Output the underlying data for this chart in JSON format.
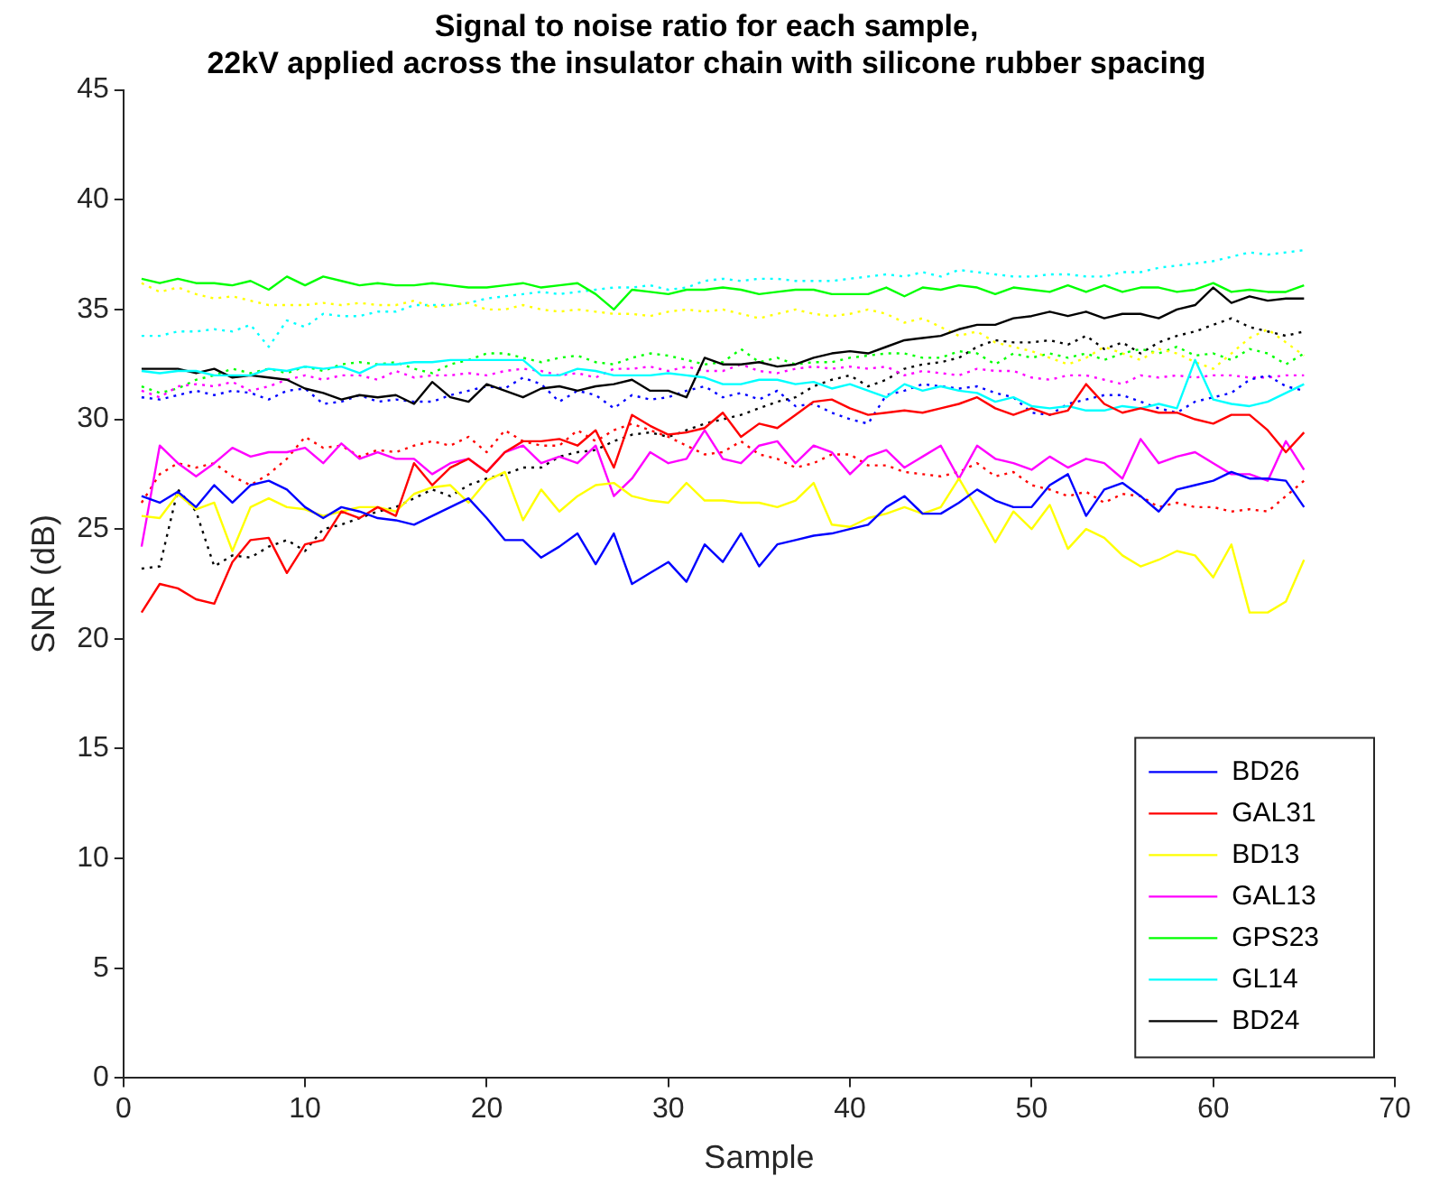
{
  "chart_data": {
    "type": "line",
    "title": "Signal to noise ratio for each sample,\n22kV applied across the insulator chain with silicone rubber spacing",
    "xlabel": "Sample",
    "ylabel": "SNR (dB)",
    "x": [
      1,
      2,
      3,
      4,
      5,
      6,
      7,
      8,
      9,
      10,
      11,
      12,
      13,
      14,
      15,
      16,
      17,
      18,
      19,
      20,
      21,
      22,
      23,
      24,
      25,
      26,
      27,
      28,
      29,
      30,
      31,
      32,
      33,
      34,
      35,
      36,
      37,
      38,
      39,
      40,
      41,
      42,
      43,
      44,
      45,
      46,
      47,
      48,
      49,
      50,
      51,
      52,
      53,
      54,
      55,
      56,
      57,
      58,
      59,
      60,
      61,
      62,
      63,
      64,
      65
    ],
    "xlim": [
      0,
      70
    ],
    "xticks": [
      0,
      10,
      20,
      30,
      40,
      50,
      60,
      70
    ],
    "ylim": [
      0,
      45
    ],
    "yticks": [
      0,
      5,
      10,
      15,
      20,
      25,
      30,
      35,
      40,
      45
    ],
    "grid": false,
    "legend": "bottom right",
    "marker": "none",
    "series": [
      {
        "name": "BD26",
        "color": "#0000ff",
        "line_style": "solid",
        "values": [
          26.5,
          26.2,
          26.7,
          26.0,
          27.0,
          26.2,
          27.0,
          27.2,
          26.8,
          26.0,
          25.5,
          26.0,
          25.8,
          25.5,
          25.4,
          25.2,
          25.6,
          26.0,
          26.4,
          25.5,
          24.5,
          24.5,
          23.7,
          24.2,
          24.8,
          23.4,
          24.8,
          22.5,
          23.0,
          23.5,
          22.6,
          24.3,
          23.5,
          24.8,
          23.3,
          24.3,
          24.5,
          24.7,
          24.8,
          25.0,
          25.2,
          26.0,
          26.5,
          25.7,
          25.7,
          26.2,
          26.8,
          26.3,
          26.0,
          26.0,
          27.0,
          27.5,
          25.6,
          26.8,
          27.1,
          26.5,
          25.8,
          26.8,
          27.0,
          27.2,
          27.6,
          27.3,
          27.3,
          27.2,
          26.0
        ]
      },
      {
        "name": "GAL31",
        "color": "#ff0000",
        "line_style": "solid",
        "values": [
          21.2,
          22.5,
          22.3,
          21.8,
          21.6,
          23.5,
          24.5,
          24.6,
          23.0,
          24.3,
          24.5,
          25.8,
          25.5,
          26.0,
          25.6,
          28.0,
          27.0,
          27.8,
          28.2,
          27.6,
          28.5,
          29.0,
          29.0,
          29.1,
          28.8,
          29.5,
          27.8,
          30.2,
          29.7,
          29.3,
          29.4,
          29.6,
          30.3,
          29.2,
          29.8,
          29.6,
          30.2,
          30.8,
          30.9,
          30.5,
          30.2,
          30.3,
          30.4,
          30.3,
          30.5,
          30.7,
          31.0,
          30.5,
          30.2,
          30.5,
          30.2,
          30.4,
          31.6,
          30.7,
          30.3,
          30.5,
          30.3,
          30.3,
          30.0,
          29.8,
          30.2,
          30.2,
          29.5,
          28.5,
          29.4
        ]
      },
      {
        "name": "BD13",
        "color": "#ffff00",
        "line_style": "solid",
        "values": [
          25.6,
          25.5,
          26.6,
          25.9,
          26.2,
          24.0,
          26.0,
          26.4,
          26.0,
          25.9,
          25.6,
          25.8,
          26.0,
          26.0,
          25.8,
          26.6,
          26.9,
          27.0,
          26.2,
          27.2,
          27.6,
          25.4,
          26.8,
          25.8,
          26.5,
          27.0,
          27.1,
          26.5,
          26.3,
          26.2,
          27.1,
          26.3,
          26.3,
          26.2,
          26.2,
          26.0,
          26.3,
          27.1,
          25.2,
          25.1,
          25.5,
          25.7,
          26.0,
          25.7,
          26.0,
          27.3,
          25.9,
          24.4,
          25.8,
          25.0,
          26.1,
          24.1,
          25.0,
          24.6,
          23.8,
          23.3,
          23.6,
          24.0,
          23.8,
          22.8,
          24.3,
          21.2,
          21.2,
          21.7,
          23.6
        ]
      },
      {
        "name": "GAL13",
        "color": "#ff00ff",
        "line_style": "solid",
        "values": [
          24.2,
          28.8,
          28.0,
          27.4,
          28.0,
          28.7,
          28.3,
          28.5,
          28.5,
          28.7,
          28.0,
          28.9,
          28.2,
          28.5,
          28.2,
          28.2,
          27.5,
          28.0,
          28.2,
          27.6,
          28.5,
          28.8,
          28.0,
          28.3,
          28.0,
          28.8,
          26.5,
          27.3,
          28.5,
          28.0,
          28.2,
          29.5,
          28.2,
          28.0,
          28.8,
          29.0,
          28.0,
          28.8,
          28.5,
          27.5,
          28.3,
          28.6,
          27.8,
          28.3,
          28.8,
          27.3,
          28.8,
          28.2,
          28.0,
          27.7,
          28.3,
          27.8,
          28.2,
          28.0,
          27.3,
          29.1,
          28.0,
          28.3,
          28.5,
          28.0,
          27.5,
          27.5,
          27.2,
          29.0,
          27.7
        ]
      },
      {
        "name": "GPS23",
        "color": "#00ff00",
        "line_style": "solid",
        "values": [
          36.4,
          36.2,
          36.4,
          36.2,
          36.2,
          36.1,
          36.3,
          35.9,
          36.5,
          36.1,
          36.5,
          36.3,
          36.1,
          36.2,
          36.1,
          36.1,
          36.2,
          36.1,
          36.0,
          36.0,
          36.1,
          36.2,
          36.0,
          36.1,
          36.2,
          35.7,
          35.0,
          35.9,
          35.8,
          35.7,
          35.9,
          35.9,
          36.0,
          35.9,
          35.7,
          35.8,
          35.9,
          35.9,
          35.7,
          35.7,
          35.7,
          36.0,
          35.6,
          36.0,
          35.9,
          36.1,
          36.0,
          35.7,
          36.0,
          35.9,
          35.8,
          36.1,
          35.8,
          36.1,
          35.8,
          36.0,
          36.0,
          35.8,
          35.9,
          36.2,
          35.8,
          35.9,
          35.8,
          35.8,
          36.1
        ]
      },
      {
        "name": "GL14",
        "color": "#00ffff",
        "line_style": "solid",
        "values": [
          32.2,
          32.1,
          32.2,
          32.2,
          32.0,
          32.0,
          32.0,
          32.3,
          32.2,
          32.4,
          32.3,
          32.4,
          32.1,
          32.5,
          32.5,
          32.6,
          32.6,
          32.7,
          32.7,
          32.7,
          32.7,
          32.7,
          32.0,
          32.0,
          32.3,
          32.2,
          32.0,
          32.0,
          32.0,
          32.1,
          32.0,
          31.9,
          31.6,
          31.6,
          31.8,
          31.8,
          31.6,
          31.7,
          31.4,
          31.6,
          31.3,
          31.0,
          31.6,
          31.3,
          31.5,
          31.3,
          31.2,
          30.8,
          31.0,
          30.6,
          30.5,
          30.6,
          30.4,
          30.4,
          30.6,
          30.5,
          30.7,
          30.5,
          32.7,
          30.9,
          30.7,
          30.6,
          30.8,
          31.2,
          31.6
        ]
      },
      {
        "name": "BD24",
        "color": "#000000",
        "line_style": "solid",
        "values": [
          32.3,
          32.3,
          32.3,
          32.1,
          32.3,
          31.9,
          32.0,
          31.9,
          31.8,
          31.4,
          31.2,
          30.9,
          31.1,
          31.0,
          31.1,
          30.7,
          31.7,
          31.0,
          30.8,
          31.6,
          31.3,
          31.0,
          31.4,
          31.5,
          31.3,
          31.5,
          31.6,
          31.8,
          31.3,
          31.3,
          31.0,
          32.8,
          32.5,
          32.5,
          32.6,
          32.4,
          32.5,
          32.8,
          33.0,
          33.1,
          33.0,
          33.3,
          33.6,
          33.7,
          33.8,
          34.1,
          34.3,
          34.3,
          34.6,
          34.7,
          34.9,
          34.7,
          34.9,
          34.6,
          34.8,
          34.8,
          34.6,
          35.0,
          35.2,
          36.0,
          35.3,
          35.6,
          35.4,
          35.5,
          35.5
        ]
      },
      {
        "color": "#0000ff",
        "line_style": "dotted",
        "values": [
          31.0,
          30.9,
          31.1,
          31.3,
          31.1,
          31.3,
          31.2,
          30.9,
          31.3,
          31.4,
          30.7,
          30.8,
          31.1,
          30.8,
          30.9,
          30.8,
          30.8,
          31.1,
          31.3,
          31.5,
          31.4,
          31.9,
          31.6,
          30.8,
          31.3,
          31.1,
          30.5,
          31.1,
          30.9,
          31.0,
          31.3,
          31.5,
          31.0,
          31.2,
          30.9,
          31.3,
          30.6,
          30.7,
          30.3,
          30.0,
          29.8,
          31.1,
          31.3,
          31.6,
          31.5,
          31.4,
          31.5,
          31.2,
          31.0,
          30.3,
          30.2,
          30.7,
          30.9,
          31.1,
          31.1,
          30.8,
          30.5,
          30.3,
          30.8,
          31.0,
          31.2,
          31.8,
          32.0,
          31.5,
          31.3
        ]
      },
      {
        "color": "#ff0000",
        "line_style": "dotted",
        "values": [
          26.2,
          27.5,
          28.0,
          27.8,
          28.0,
          27.4,
          27.0,
          27.5,
          28.2,
          29.2,
          28.7,
          28.8,
          28.3,
          28.6,
          28.5,
          28.8,
          29.0,
          28.8,
          29.2,
          28.5,
          29.5,
          29.0,
          28.8,
          28.8,
          29.5,
          29.0,
          29.5,
          29.8,
          29.5,
          29.2,
          28.8,
          28.4,
          28.5,
          29.0,
          28.4,
          28.2,
          27.8,
          28.0,
          28.4,
          28.4,
          27.9,
          27.9,
          27.6,
          27.5,
          27.4,
          27.6,
          28.0,
          27.4,
          27.6,
          27.0,
          26.8,
          26.5,
          26.7,
          26.2,
          26.6,
          26.5,
          26.0,
          26.2,
          26.0,
          26.0,
          25.8,
          25.9,
          25.8,
          26.5,
          27.2
        ]
      },
      {
        "color": "#ffff00",
        "line_style": "dotted",
        "values": [
          36.2,
          35.8,
          36.0,
          35.7,
          35.5,
          35.6,
          35.4,
          35.2,
          35.2,
          35.2,
          35.3,
          35.2,
          35.3,
          35.2,
          35.2,
          35.4,
          35.1,
          35.2,
          35.3,
          35.0,
          35.0,
          35.2,
          35.0,
          34.9,
          35.0,
          34.9,
          34.8,
          34.8,
          34.7,
          34.9,
          35.0,
          34.9,
          35.0,
          34.8,
          34.6,
          34.8,
          35.0,
          34.8,
          34.7,
          34.8,
          35.0,
          34.8,
          34.4,
          34.6,
          34.2,
          33.8,
          34.0,
          33.5,
          33.3,
          33.1,
          32.8,
          32.5,
          32.8,
          33.3,
          33.0,
          32.7,
          33.2,
          33.0,
          32.6,
          32.3,
          33.0,
          33.7,
          34.1,
          33.5,
          32.9
        ]
      },
      {
        "color": "#ff00ff",
        "line_style": "dotted",
        "values": [
          31.3,
          31.0,
          31.5,
          31.6,
          31.5,
          31.7,
          31.3,
          31.5,
          31.8,
          32.0,
          31.8,
          32.0,
          32.0,
          31.8,
          32.2,
          31.9,
          32.0,
          32.0,
          32.1,
          32.0,
          32.2,
          32.3,
          32.2,
          32.0,
          32.1,
          31.9,
          32.3,
          32.3,
          32.4,
          32.2,
          32.4,
          32.2,
          32.2,
          32.5,
          32.2,
          32.1,
          32.3,
          32.4,
          32.3,
          32.4,
          32.3,
          32.4,
          32.0,
          32.2,
          32.1,
          32.0,
          32.3,
          32.2,
          32.2,
          31.9,
          31.8,
          32.0,
          32.0,
          31.8,
          31.6,
          32.0,
          31.9,
          32.0,
          31.9,
          32.0,
          32.0,
          31.9,
          31.9,
          32.0,
          32.0
        ]
      },
      {
        "color": "#00ff00",
        "line_style": "dotted",
        "values": [
          31.5,
          31.2,
          31.4,
          31.8,
          32.0,
          32.3,
          32.1,
          32.3,
          32.1,
          32.4,
          32.2,
          32.5,
          32.6,
          32.5,
          32.6,
          32.3,
          32.1,
          32.5,
          32.7,
          33.0,
          33.0,
          32.8,
          32.6,
          32.8,
          32.9,
          32.6,
          32.5,
          32.8,
          33.0,
          32.9,
          32.7,
          32.5,
          32.6,
          33.2,
          32.6,
          32.8,
          32.5,
          32.6,
          32.6,
          32.8,
          32.9,
          33.0,
          33.0,
          32.8,
          32.8,
          33.1,
          33.0,
          32.5,
          33.0,
          32.8,
          33.0,
          32.8,
          33.0,
          32.7,
          33.0,
          33.2,
          33.0,
          33.3,
          32.9,
          33.0,
          32.7,
          33.2,
          33.0,
          32.5,
          33.0
        ]
      },
      {
        "color": "#00ffff",
        "line_style": "dotted",
        "values": [
          33.8,
          33.8,
          34.0,
          34.0,
          34.1,
          34.0,
          34.3,
          33.3,
          34.5,
          34.2,
          34.8,
          34.7,
          34.7,
          34.9,
          34.9,
          35.2,
          35.2,
          35.2,
          35.3,
          35.5,
          35.6,
          35.7,
          35.8,
          35.7,
          35.8,
          35.9,
          36.0,
          36.0,
          36.1,
          35.9,
          36.0,
          36.3,
          36.4,
          36.3,
          36.4,
          36.4,
          36.3,
          36.3,
          36.3,
          36.4,
          36.5,
          36.6,
          36.5,
          36.7,
          36.5,
          36.8,
          36.7,
          36.6,
          36.5,
          36.5,
          36.6,
          36.6,
          36.5,
          36.5,
          36.7,
          36.7,
          36.9,
          37.0,
          37.1,
          37.2,
          37.4,
          37.6,
          37.5,
          37.6,
          37.7
        ]
      },
      {
        "color": "#000000",
        "line_style": "dotted",
        "values": [
          23.2,
          23.3,
          26.8,
          25.8,
          23.3,
          23.8,
          23.7,
          24.2,
          24.5,
          24.0,
          25.0,
          25.2,
          25.5,
          25.8,
          26.0,
          26.4,
          26.8,
          26.5,
          27.0,
          27.3,
          27.5,
          27.8,
          27.8,
          28.3,
          28.5,
          28.6,
          29.0,
          29.3,
          29.4,
          29.2,
          29.5,
          29.8,
          30.0,
          30.2,
          30.5,
          30.8,
          31.0,
          31.5,
          31.8,
          32.0,
          31.5,
          31.8,
          32.3,
          32.5,
          32.6,
          32.8,
          33.3,
          33.6,
          33.5,
          33.5,
          33.6,
          33.4,
          33.8,
          33.2,
          33.5,
          33.0,
          33.5,
          33.8,
          34.0,
          34.3,
          34.6,
          34.2,
          34.0,
          33.8,
          34.0
        ]
      }
    ]
  }
}
